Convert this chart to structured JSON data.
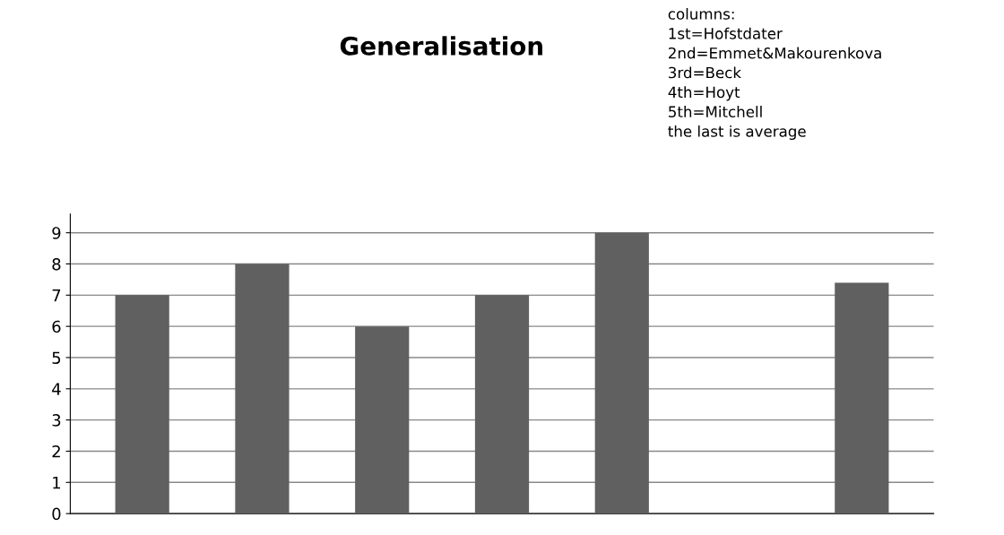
{
  "chart_data": {
    "type": "bar",
    "title": "Generalisation",
    "categories": [
      null,
      null,
      null,
      null,
      null,
      null,
      null
    ],
    "values": [
      7,
      8,
      6,
      7,
      9,
      null,
      7.4
    ],
    "color": "#606060",
    "ylim": [
      0,
      9.6
    ],
    "yticks": [
      0,
      1,
      2,
      3,
      4,
      5,
      6,
      7,
      8,
      9
    ],
    "grid": "y",
    "legend": false,
    "annotations": [
      "columns:\n1st=Hofstdater\n2nd=Emmet&Makourenkova\n3rd=Beck\n4th=Hoyt\n5th=Mitchell\nthe last is average"
    ]
  }
}
